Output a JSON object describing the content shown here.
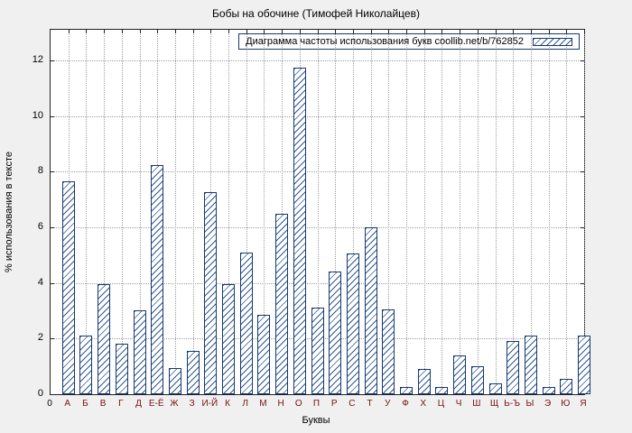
{
  "chart_data": {
    "type": "bar",
    "title": "Бобы на обочине (Тимофей Николайцев)",
    "legend": "Диаграмма частоты использования букв coollib.net/b/762852",
    "legend_position": "top-right",
    "xlabel": "Буквы",
    "ylabel": "% использования в тексте",
    "origin_label": "0",
    "ylim": [
      0,
      13.1
    ],
    "yticks": [
      0,
      2,
      4,
      6,
      8,
      10,
      12
    ],
    "grid": true,
    "categories": [
      "А",
      "Б",
      "В",
      "Г",
      "Д",
      "Е-Ё",
      "Ж",
      "З",
      "И-Й",
      "К",
      "Л",
      "М",
      "Н",
      "О",
      "П",
      "Р",
      "С",
      "Т",
      "У",
      "Ф",
      "Х",
      "Ц",
      "Ч",
      "Ш",
      "Щ",
      "Ь-Ъ",
      "Ы",
      "Э",
      "Ю",
      "Я"
    ],
    "values": [
      7.65,
      2.1,
      3.95,
      1.8,
      3.0,
      8.25,
      0.95,
      1.55,
      7.25,
      3.95,
      5.1,
      2.85,
      6.5,
      11.75,
      3.1,
      4.4,
      5.05,
      6.0,
      3.05,
      0.25,
      0.9,
      0.25,
      1.4,
      1.0,
      0.4,
      1.9,
      2.1,
      0.25,
      0.55,
      2.1
    ]
  },
  "colors": {
    "background": "#f0f0f0",
    "plot_background": "#ffffff",
    "bar_border": "#17386e",
    "bar_hatch": "#2f5795",
    "grid": "#a0a0a0",
    "axis": "#222222",
    "x_letter_labels": "#7a1010",
    "text": "#000000"
  }
}
